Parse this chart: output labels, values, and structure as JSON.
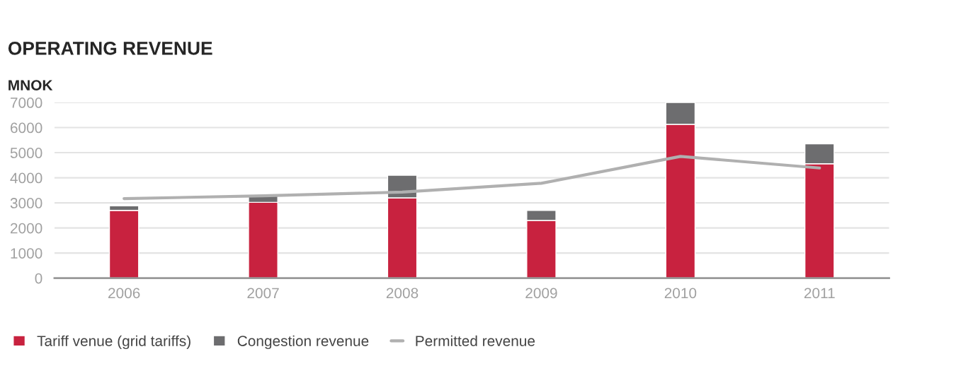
{
  "chart_data": {
    "type": "bar",
    "title": "OPERATING REVENUE",
    "ylabel": "MNOK",
    "stacked": true,
    "categories": [
      "2006",
      "2007",
      "2008",
      "2009",
      "2010",
      "2011"
    ],
    "series": [
      {
        "name": "Tariff venue (grid tariffs)",
        "color": "#c8223f",
        "values": [
          2700,
          3020,
          3200,
          2300,
          6130,
          4560
        ]
      },
      {
        "name": "Congestion revenue",
        "color": "#6d6d6f",
        "values": [
          180,
          260,
          900,
          400,
          870,
          790
        ]
      },
      {
        "name": "Permitted revenue",
        "type": "line",
        "color": "#b0b0b0",
        "values": [
          3170,
          3280,
          3430,
          3780,
          4850,
          4390
        ]
      }
    ],
    "ylim": [
      0,
      7000
    ],
    "yticks": [
      0,
      1000,
      2000,
      3000,
      4000,
      5000,
      6000,
      7000
    ],
    "grid": "y",
    "legend": "bottom"
  }
}
